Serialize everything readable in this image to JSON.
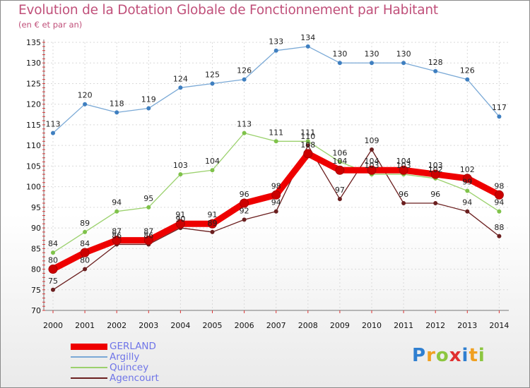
{
  "chart_data": {
    "type": "line",
    "title": "Evolution de la Dotation Globale de Fonctionnement par Habitant",
    "subtitle": "(en € et par an)",
    "xlabel": "",
    "ylabel": "",
    "ylim": [
      70,
      135
    ],
    "yticks": [
      70,
      75,
      80,
      85,
      90,
      95,
      100,
      105,
      110,
      115,
      120,
      125,
      130,
      135
    ],
    "categories": [
      "2000",
      "2001",
      "2002",
      "2003",
      "2004",
      "2005",
      "2006",
      "2007",
      "2008",
      "2009",
      "2010",
      "2011",
      "2012",
      "2013",
      "2014"
    ],
    "grid": true,
    "legend_position": "bottom-left",
    "series": [
      {
        "name": "Agencourt",
        "color": "#6b1f1f",
        "marker": "#6b1f1f",
        "values": [
          75,
          80,
          86,
          86,
          90,
          89,
          92,
          94,
          110,
          97,
          109,
          96,
          96,
          94,
          88
        ]
      },
      {
        "name": "Quincey",
        "color": "#9bd16d",
        "marker": "#7fc24a",
        "values": [
          84,
          89,
          94,
          95,
          103,
          104,
          113,
          111,
          111,
          106,
          103,
          103,
          102,
          99,
          94
        ]
      },
      {
        "name": "Argilly",
        "color": "#7aa9d6",
        "marker": "#3f7fc0",
        "values": [
          113,
          120,
          118,
          119,
          124,
          125,
          126,
          133,
          134,
          130,
          130,
          130,
          128,
          126,
          117
        ]
      },
      {
        "name": "GERLAND",
        "color": "#ee0000",
        "marker": "#cc0000",
        "values": [
          80,
          84,
          87,
          87,
          91,
          91,
          96,
          98,
          108,
          104,
          104,
          104,
          103,
          102,
          98
        ]
      }
    ],
    "legend": [
      "GERLAND",
      "Argilly",
      "Quincey",
      "Agencourt"
    ]
  },
  "logo": {
    "p": "P",
    "r": "r",
    "o": "o",
    "x": "x",
    "i1": "i",
    "t": "t",
    "i2": "i"
  }
}
